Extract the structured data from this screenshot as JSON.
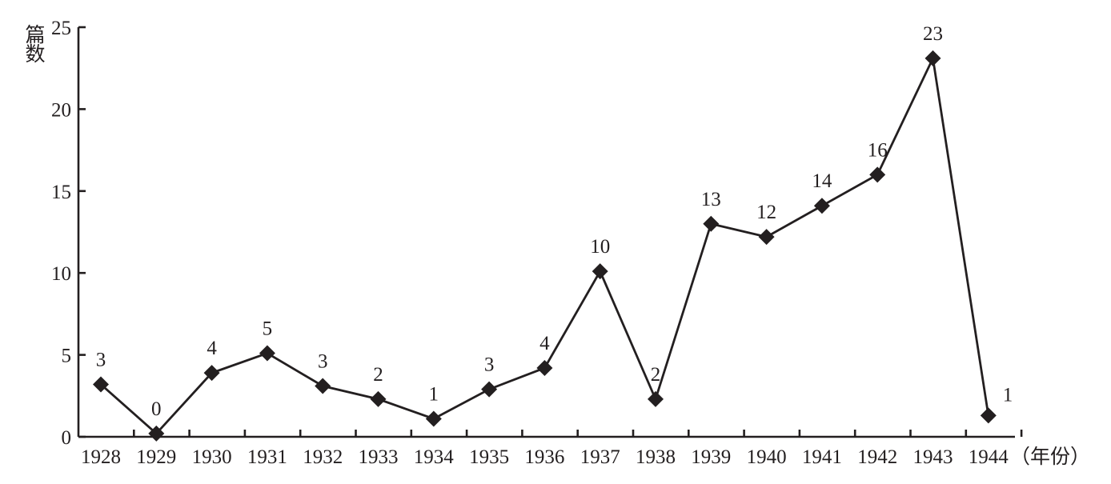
{
  "chart_data": {
    "type": "line",
    "title": "",
    "xlabel": "（年份）",
    "ylabel": "篇数",
    "categories": [
      "1928",
      "1929",
      "1930",
      "1931",
      "1932",
      "1933",
      "1934",
      "1935",
      "1936",
      "1937",
      "1938",
      "1939",
      "1940",
      "1941",
      "1942",
      "1943",
      "1944"
    ],
    "series": [
      {
        "values": [
          3.2,
          0.2,
          3.9,
          5.1,
          3.1,
          2.3,
          1.1,
          2.9,
          4.2,
          10.1,
          2.3,
          13.0,
          12.2,
          14.1,
          16.0,
          23.1,
          1.3
        ],
        "labels": [
          "3",
          "0",
          "4",
          "5",
          "3",
          "2",
          "1",
          "3",
          "4",
          "10",
          "2",
          "13",
          "12",
          "14",
          "16",
          "23",
          "1"
        ]
      }
    ],
    "y_ticks": [
      "0",
      "5",
      "10",
      "15",
      "20",
      "25"
    ],
    "ylim": [
      0,
      25
    ],
    "grid": false,
    "legend": "none",
    "marker": "diamond",
    "colors": {
      "line": "#231f20",
      "axis": "#231f20",
      "text": "#231f20"
    }
  }
}
